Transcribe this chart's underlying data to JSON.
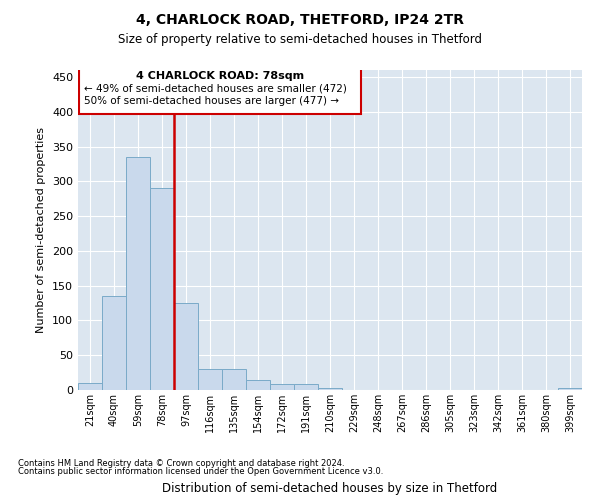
{
  "title": "4, CHARLOCK ROAD, THETFORD, IP24 2TR",
  "subtitle": "Size of property relative to semi-detached houses in Thetford",
  "xlabel": "Distribution of semi-detached houses by size in Thetford",
  "ylabel": "Number of semi-detached properties",
  "footnote1": "Contains HM Land Registry data © Crown copyright and database right 2024.",
  "footnote2": "Contains public sector information licensed under the Open Government Licence v3.0.",
  "annotation_title": "4 CHARLOCK ROAD: 78sqm",
  "annotation_line1": "← 49% of semi-detached houses are smaller (472)",
  "annotation_line2": "50% of semi-detached houses are larger (477) →",
  "bar_color": "#c9d9ec",
  "bar_edge_color": "#7aaac8",
  "vline_color": "#cc0000",
  "vline_x_index": 3,
  "categories": [
    "21sqm",
    "40sqm",
    "59sqm",
    "78sqm",
    "97sqm",
    "116sqm",
    "135sqm",
    "154sqm",
    "172sqm",
    "191sqm",
    "210sqm",
    "229sqm",
    "248sqm",
    "267sqm",
    "286sqm",
    "305sqm",
    "323sqm",
    "342sqm",
    "361sqm",
    "380sqm",
    "399sqm"
  ],
  "values": [
    10,
    135,
    335,
    290,
    125,
    30,
    30,
    15,
    8,
    8,
    3,
    0,
    0,
    0,
    0,
    0,
    0,
    0,
    0,
    0,
    3
  ],
  "ylim": [
    0,
    460
  ],
  "yticks": [
    0,
    50,
    100,
    150,
    200,
    250,
    300,
    350,
    400,
    450
  ],
  "background_color": "#dce6f0",
  "plot_background": "#dce6f0"
}
